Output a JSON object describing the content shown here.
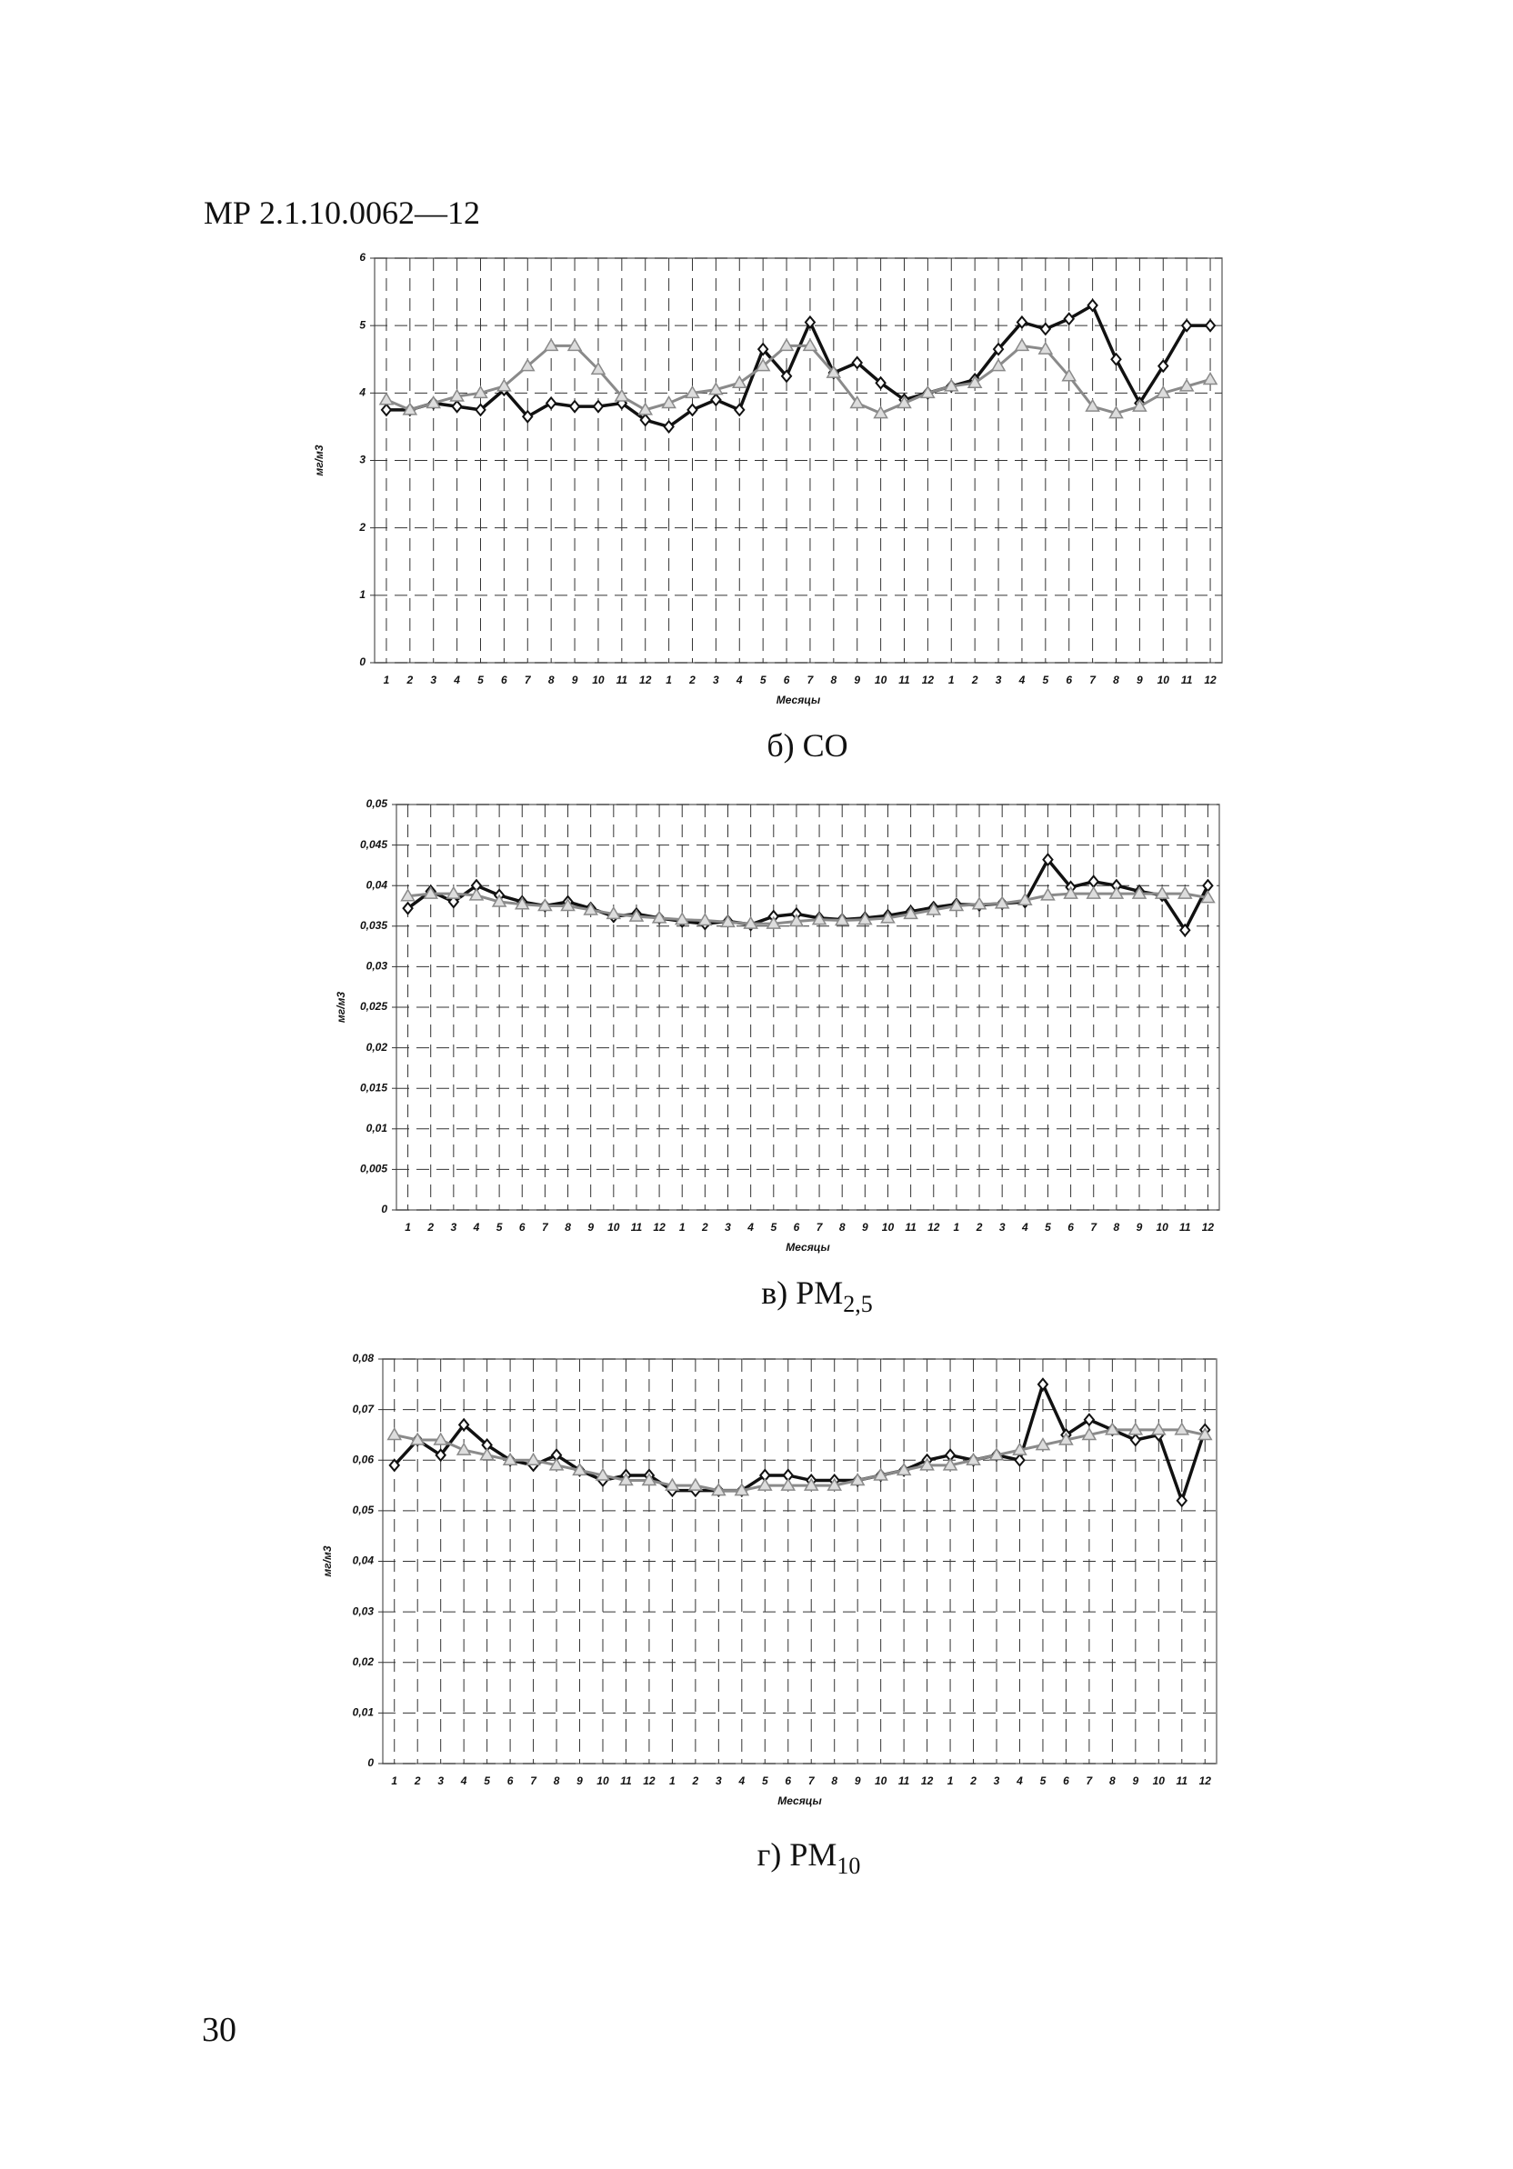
{
  "header": "МР 2.1.10.0062—12",
  "page_number": "30",
  "chart_data": [
    {
      "type": "line",
      "caption": "б) CO",
      "x_label": "Месяцы",
      "y_label": "мг/м3",
      "grid": true,
      "categories": [
        "1",
        "2",
        "3",
        "4",
        "5",
        "6",
        "7",
        "8",
        "9",
        "10",
        "11",
        "12",
        "1",
        "2",
        "3",
        "4",
        "5",
        "6",
        "7",
        "8",
        "9",
        "10",
        "11",
        "12",
        "1",
        "2",
        "3",
        "4",
        "5",
        "6",
        "7",
        "8",
        "9",
        "10",
        "11",
        "12"
      ],
      "ylim": [
        0,
        6
      ],
      "yticks": [
        0,
        1,
        2,
        3,
        4,
        5,
        6
      ],
      "series": [
        {
          "color": "#111111",
          "marker": "diamond",
          "values": [
            3.75,
            3.75,
            3.85,
            3.8,
            3.75,
            4.05,
            3.65,
            3.85,
            3.8,
            3.8,
            3.85,
            3.6,
            3.5,
            3.75,
            3.9,
            3.75,
            4.65,
            4.25,
            5.05,
            4.3,
            4.45,
            4.15,
            3.9,
            4.0,
            4.1,
            4.2,
            4.65,
            5.05,
            4.95,
            5.1,
            5.3,
            4.5,
            3.85,
            4.4,
            5.0,
            5.0
          ]
        },
        {
          "color": "#8a8a8a",
          "marker": "triangle",
          "values": [
            3.9,
            3.75,
            3.85,
            3.95,
            4.0,
            4.1,
            4.4,
            4.7,
            4.7,
            4.35,
            3.95,
            3.75,
            3.85,
            4.0,
            4.05,
            4.15,
            4.4,
            4.7,
            4.7,
            4.3,
            3.85,
            3.7,
            3.85,
            4.0,
            4.1,
            4.15,
            4.4,
            4.7,
            4.65,
            4.25,
            3.8,
            3.7,
            3.8,
            4.0,
            4.1,
            4.2
          ]
        }
      ]
    },
    {
      "type": "line",
      "caption": "в) PM",
      "caption_sub": "2,5",
      "x_label": "Месяцы",
      "y_label": "мг/м3",
      "grid": true,
      "categories": [
        "1",
        "2",
        "3",
        "4",
        "5",
        "6",
        "7",
        "8",
        "9",
        "10",
        "11",
        "12",
        "1",
        "2",
        "3",
        "4",
        "5",
        "6",
        "7",
        "8",
        "9",
        "10",
        "11",
        "12",
        "1",
        "2",
        "3",
        "4",
        "5",
        "6",
        "7",
        "8",
        "9",
        "10",
        "11",
        "12"
      ],
      "ylim": [
        0,
        0.05
      ],
      "yticks": [
        0,
        {
          "value": 0.005,
          "label": "0,005"
        },
        {
          "value": 0.01,
          "label": "0,01"
        },
        {
          "value": 0.015,
          "label": "0,015"
        },
        {
          "value": 0.02,
          "label": "0,02"
        },
        {
          "value": 0.025,
          "label": "0,025"
        },
        {
          "value": 0.03,
          "label": "0,03"
        },
        {
          "value": 0.035,
          "label": "0,035"
        },
        {
          "value": 0.04,
          "label": "0,04"
        },
        {
          "value": 0.045,
          "label": "0,045"
        },
        {
          "value": 0.05,
          "label": "0,05"
        }
      ],
      "series": [
        {
          "color": "#111111",
          "marker": "diamond",
          "values": [
            0.0372,
            0.0393,
            0.038,
            0.04,
            0.0388,
            0.038,
            0.0375,
            0.038,
            0.0372,
            0.0362,
            0.0365,
            0.036,
            0.0356,
            0.0353,
            0.0356,
            0.0352,
            0.0362,
            0.0365,
            0.036,
            0.0358,
            0.036,
            0.0363,
            0.0368,
            0.0373,
            0.0377,
            0.0376,
            0.0378,
            0.038,
            0.0432,
            0.0398,
            0.0405,
            0.04,
            0.0393,
            0.0388,
            0.0345,
            0.04
          ]
        },
        {
          "color": "#8a8a8a",
          "marker": "triangle",
          "values": [
            0.0387,
            0.039,
            0.039,
            0.0388,
            0.038,
            0.0377,
            0.0375,
            0.0375,
            0.037,
            0.0365,
            0.0362,
            0.036,
            0.0358,
            0.0357,
            0.0355,
            0.0353,
            0.0353,
            0.0356,
            0.0358,
            0.0357,
            0.0358,
            0.036,
            0.0365,
            0.037,
            0.0375,
            0.0377,
            0.0378,
            0.0382,
            0.0388,
            0.039,
            0.039,
            0.039,
            0.039,
            0.039,
            0.039,
            0.0385
          ]
        }
      ]
    },
    {
      "type": "line",
      "caption": "г) PM",
      "caption_sub": "10",
      "x_label": "Месяцы",
      "y_label": "мг/м3",
      "grid": true,
      "categories": [
        "1",
        "2",
        "3",
        "4",
        "5",
        "6",
        "7",
        "8",
        "9",
        "10",
        "11",
        "12",
        "1",
        "2",
        "3",
        "4",
        "5",
        "6",
        "7",
        "8",
        "9",
        "10",
        "11",
        "12",
        "1",
        "2",
        "3",
        "4",
        "5",
        "6",
        "7",
        "8",
        "9",
        "10",
        "11",
        "12"
      ],
      "ylim": [
        0,
        0.08
      ],
      "yticks": [
        0,
        {
          "value": 0.01,
          "label": "0,01"
        },
        {
          "value": 0.02,
          "label": "0,02"
        },
        {
          "value": 0.03,
          "label": "0,03"
        },
        {
          "value": 0.04,
          "label": "0,04"
        },
        {
          "value": 0.05,
          "label": "0,05"
        },
        {
          "value": 0.06,
          "label": "0,06"
        },
        {
          "value": 0.07,
          "label": "0,07"
        },
        {
          "value": 0.08,
          "label": "0,08"
        }
      ],
      "series": [
        {
          "color": "#111111",
          "marker": "diamond",
          "values": [
            0.059,
            0.064,
            0.061,
            0.067,
            0.063,
            0.06,
            0.059,
            0.061,
            0.058,
            0.056,
            0.057,
            0.057,
            0.054,
            0.054,
            0.054,
            0.054,
            0.057,
            0.057,
            0.056,
            0.056,
            0.056,
            0.057,
            0.058,
            0.06,
            0.061,
            0.06,
            0.061,
            0.06,
            0.075,
            0.065,
            0.068,
            0.066,
            0.064,
            0.065,
            0.052,
            0.066
          ]
        },
        {
          "color": "#8a8a8a",
          "marker": "triangle",
          "values": [
            0.065,
            0.064,
            0.064,
            0.062,
            0.061,
            0.06,
            0.06,
            0.059,
            0.058,
            0.057,
            0.056,
            0.056,
            0.055,
            0.055,
            0.054,
            0.054,
            0.055,
            0.055,
            0.055,
            0.055,
            0.056,
            0.057,
            0.058,
            0.059,
            0.059,
            0.06,
            0.061,
            0.062,
            0.063,
            0.064,
            0.065,
            0.066,
            0.066,
            0.066,
            0.066,
            0.065
          ]
        }
      ]
    }
  ]
}
